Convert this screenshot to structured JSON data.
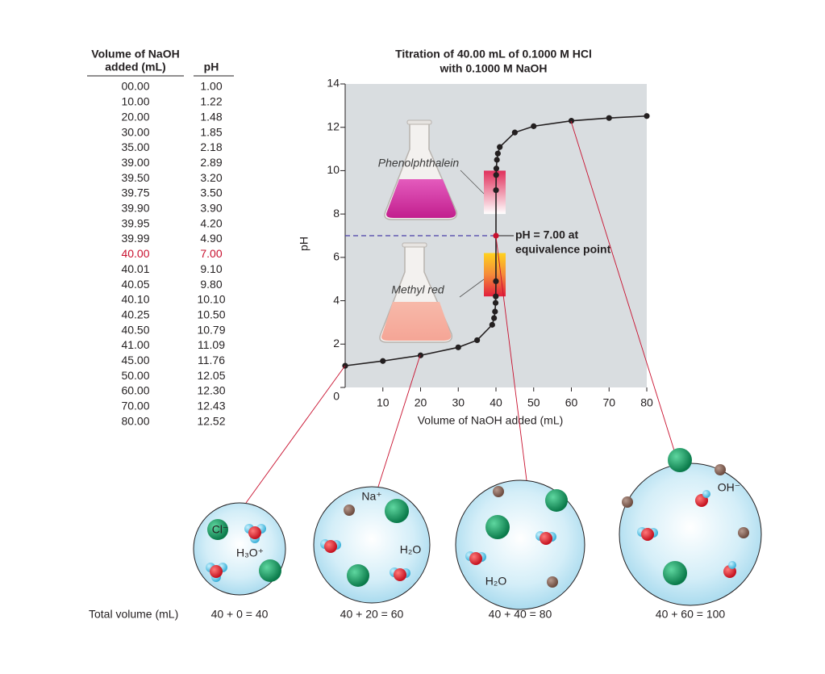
{
  "table": {
    "headers": [
      [
        "Volume of NaOH",
        "added (mL)"
      ],
      [
        "pH"
      ]
    ],
    "rows": [
      [
        "00.00",
        "1.00"
      ],
      [
        "10.00",
        "1.22"
      ],
      [
        "20.00",
        "1.48"
      ],
      [
        "30.00",
        "1.85"
      ],
      [
        "35.00",
        "2.18"
      ],
      [
        "39.00",
        "2.89"
      ],
      [
        "39.50",
        "3.20"
      ],
      [
        "39.75",
        "3.50"
      ],
      [
        "39.90",
        "3.90"
      ],
      [
        "39.95",
        "4.20"
      ],
      [
        "39.99",
        "4.90"
      ],
      [
        "40.00",
        "7.00"
      ],
      [
        "40.01",
        "9.10"
      ],
      [
        "40.05",
        "9.80"
      ],
      [
        "40.10",
        "10.10"
      ],
      [
        "40.25",
        "10.50"
      ],
      [
        "40.50",
        "10.79"
      ],
      [
        "41.00",
        "11.09"
      ],
      [
        "45.00",
        "11.76"
      ],
      [
        "50.00",
        "12.05"
      ],
      [
        "60.00",
        "12.30"
      ],
      [
        "70.00",
        "12.43"
      ],
      [
        "80.00",
        "12.52"
      ]
    ],
    "highlight": {
      "row": 11,
      "color": "#c8102e"
    }
  },
  "chart_data": {
    "type": "line",
    "title": [
      "Titration of 40.00 mL of 0.1000 M HCl",
      "with 0.1000 M NaOH"
    ],
    "xlabel": "Volume of NaOH added (mL)",
    "ylabel": "pH",
    "x": [
      0,
      10,
      20,
      30,
      35,
      39,
      39.5,
      39.75,
      39.9,
      39.95,
      39.99,
      40,
      40.01,
      40.05,
      40.1,
      40.25,
      40.5,
      41,
      45,
      50,
      60,
      70,
      80
    ],
    "values": [
      1.0,
      1.22,
      1.48,
      1.85,
      2.18,
      2.89,
      3.2,
      3.5,
      3.9,
      4.2,
      4.9,
      7.0,
      9.1,
      9.8,
      10.1,
      10.5,
      10.79,
      11.09,
      11.76,
      12.05,
      12.3,
      12.43,
      12.52
    ],
    "color": "#231f20",
    "xlim": [
      0,
      80
    ],
    "ylim": [
      0,
      14
    ],
    "xticks": [
      10,
      20,
      30,
      40,
      50,
      60,
      70,
      80
    ],
    "yticks": [
      0,
      2,
      4,
      6,
      8,
      10,
      12,
      14
    ],
    "indicators": [
      {
        "name": "Phenolphthalein",
        "range": [
          8,
          10
        ]
      },
      {
        "name": "Methyl red",
        "range": [
          4.2,
          6.2
        ]
      }
    ],
    "equivalence": {
      "text": [
        "pH = 7.00 at",
        "equivalence point"
      ],
      "x": 40,
      "y": 7,
      "color": "#c8102e"
    }
  },
  "views": {
    "total_label": "Total volume (mL)",
    "totals": [
      "40 + 0 = 40",
      "40 + 20 = 60",
      "40 + 40 = 80",
      "40 + 60 = 100"
    ],
    "labels": [
      "Cl⁻",
      "H₃O⁺",
      "Na⁺",
      "H₂O",
      "H₂O",
      "OH⁻"
    ]
  }
}
